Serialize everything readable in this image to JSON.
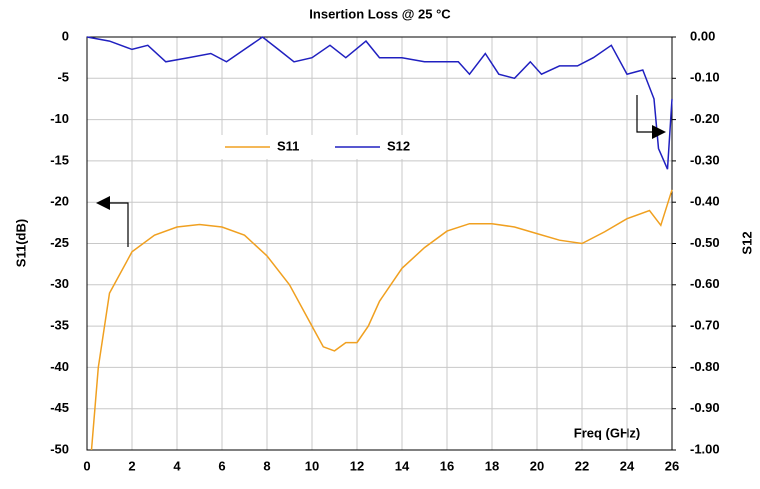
{
  "chart_data": {
    "type": "line",
    "title": "Insertion Loss  @ 25 °C",
    "xlabel": "Freq (GHz)",
    "ylabel": "S11(dB)",
    "y2label": "S12",
    "xlim": [
      0,
      26
    ],
    "xticks": [
      0,
      2,
      4,
      6,
      8,
      10,
      12,
      14,
      16,
      18,
      20,
      22,
      24,
      26
    ],
    "ylim": [
      -50,
      0
    ],
    "yticks": [
      0,
      -5,
      -10,
      -15,
      -20,
      -25,
      -30,
      -35,
      -40,
      -45,
      -50
    ],
    "y2lim": [
      -1,
      0
    ],
    "y2ticks": [
      {
        "value": 0,
        "label": "0.00"
      },
      {
        "value": -0.1,
        "label": "-0.10"
      },
      {
        "value": -0.2,
        "label": "-0.20"
      },
      {
        "value": -0.3,
        "label": "-0.30"
      },
      {
        "value": -0.4,
        "label": "-0.40"
      },
      {
        "value": -0.5,
        "label": "-0.50"
      },
      {
        "value": -0.6,
        "label": "-0.60"
      },
      {
        "value": -0.7,
        "label": "-0.70"
      },
      {
        "value": -0.8,
        "label": "-0.80"
      },
      {
        "value": -0.9,
        "label": "-0.90"
      },
      {
        "value": -1,
        "label": "-1.00"
      }
    ],
    "grid": true,
    "legend": "upper center",
    "series": [
      {
        "name": "S11",
        "color": "#f0a020",
        "x": [
          0.2,
          0.5,
          1,
          2,
          3,
          4,
          5,
          6,
          7,
          8,
          9,
          10,
          10.5,
          11,
          11.5,
          12,
          12.5,
          13,
          14,
          15,
          16,
          17,
          18,
          19,
          20,
          21,
          22,
          23,
          24,
          25,
          25.5,
          26
        ],
        "values": [
          -50,
          -40,
          -31,
          -26,
          -24,
          -23,
          -22.7,
          -23,
          -24,
          -26.5,
          -30,
          -35,
          -37.5,
          -38,
          -37,
          -37,
          -35,
          -32,
          -28,
          -25.5,
          -23.5,
          -22.6,
          -22.6,
          -23,
          -23.8,
          -24.6,
          -25,
          -23.6,
          -22,
          -21,
          -22.8,
          -18.5
        ]
      },
      {
        "name": "S12",
        "color": "#2020c0",
        "axis": "y2",
        "x": [
          0,
          1,
          2,
          2.7,
          3.5,
          4.5,
          5.5,
          6.2,
          7,
          7.8,
          8.5,
          9.2,
          10,
          10.8,
          11.5,
          12.4,
          13,
          14,
          15,
          16,
          16.5,
          17,
          17.7,
          18.3,
          19,
          19.7,
          20.2,
          21,
          21.8,
          22.5,
          23.3,
          24,
          24.7,
          25.2,
          25.4,
          25.8,
          26
        ],
        "values": [
          0,
          -0.01,
          -0.03,
          -0.02,
          -0.06,
          -0.05,
          -0.04,
          -0.06,
          -0.03,
          0,
          -0.03,
          -0.06,
          -0.05,
          -0.02,
          -0.05,
          -0.01,
          -0.05,
          -0.05,
          -0.06,
          -0.06,
          -0.06,
          -0.09,
          -0.04,
          -0.09,
          -0.1,
          -0.06,
          -0.09,
          -0.07,
          -0.07,
          -0.05,
          -0.02,
          -0.09,
          -0.08,
          -0.15,
          -0.27,
          -0.32,
          -0.15
        ]
      }
    ]
  }
}
